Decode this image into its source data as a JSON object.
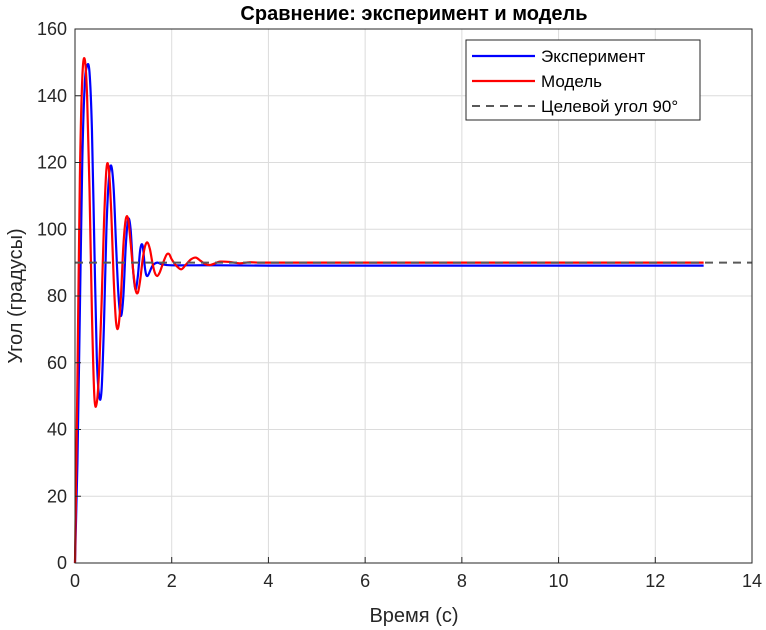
{
  "chart_data": {
    "type": "line",
    "title": "Сравнение: эксперимент и модель",
    "xlabel": "Время (с)",
    "ylabel": "Угол (градусы)",
    "xlim": [
      0,
      14
    ],
    "ylim": [
      0,
      160
    ],
    "x_ticks": [
      0,
      2,
      4,
      6,
      8,
      10,
      12,
      14
    ],
    "y_ticks": [
      0,
      20,
      40,
      60,
      80,
      100,
      120,
      140,
      160
    ],
    "grid": true,
    "legend_position": "top-right",
    "series": [
      {
        "name": "Эксперимент",
        "color": "#0000ff",
        "style": "solid",
        "x": [
          0,
          0.05,
          0.1,
          0.15,
          0.2,
          0.25,
          0.3,
          0.35,
          0.4,
          0.45,
          0.5,
          0.55,
          0.6,
          0.65,
          0.7,
          0.75,
          0.8,
          0.85,
          0.9,
          0.95,
          1.0,
          1.05,
          1.1,
          1.15,
          1.2,
          1.25,
          1.3,
          1.35,
          1.4,
          1.45,
          1.5,
          1.6,
          1.7,
          1.8,
          2.0,
          2.5,
          3.0,
          4.0,
          6.0,
          8.0,
          10.0,
          12.0,
          13.0
        ],
        "y": [
          0,
          30,
          75,
          120,
          143,
          149,
          147,
          130,
          95,
          62,
          50,
          52,
          72,
          100,
          115,
          119,
          112,
          95,
          80,
          74,
          80,
          95,
          103,
          100,
          88,
          82,
          86,
          94,
          95,
          88,
          86,
          89,
          90,
          89.5,
          89.2,
          89.2,
          89.2,
          89.1,
          89.1,
          89.1,
          89.1,
          89.1,
          89.1
        ]
      },
      {
        "name": "Модель",
        "color": "#ff0000",
        "style": "solid",
        "x": [
          0,
          0.05,
          0.1,
          0.15,
          0.2,
          0.25,
          0.3,
          0.35,
          0.4,
          0.45,
          0.5,
          0.55,
          0.6,
          0.65,
          0.7,
          0.75,
          0.8,
          0.85,
          0.9,
          0.95,
          1.0,
          1.05,
          1.1,
          1.15,
          1.2,
          1.25,
          1.3,
          1.35,
          1.4,
          1.45,
          1.5,
          1.55,
          1.6,
          1.65,
          1.7,
          1.75,
          1.8,
          1.85,
          1.9,
          1.95,
          2.0,
          2.1,
          2.2,
          2.3,
          2.4,
          2.5,
          2.6,
          2.7,
          2.8,
          2.9,
          3.0,
          3.2,
          3.4,
          3.6,
          3.8,
          4.0,
          5.0,
          6.0,
          8.0,
          10.0,
          12.0,
          13.0
        ],
        "y": [
          0,
          55,
          115,
          145,
          151,
          140,
          112,
          75,
          50,
          48,
          58,
          78,
          102,
          118,
          118,
          105,
          85,
          72,
          71,
          80,
          95,
          103,
          103,
          96,
          88,
          82,
          81,
          85,
          91,
          95,
          96,
          94,
          90,
          87,
          86,
          87,
          89,
          91,
          92.5,
          92.5,
          91,
          89,
          88,
          89.5,
          91,
          91.5,
          90.5,
          89.5,
          89.3,
          89.8,
          90.3,
          90.2,
          89.8,
          90.1,
          90.0,
          90.0,
          90.0,
          90.0,
          90.0,
          90.0,
          90.0,
          90.0
        ]
      },
      {
        "name": "Целевой угол 90°",
        "color": "#595959",
        "style": "dashed",
        "x": [
          0,
          14
        ],
        "y": [
          90,
          90
        ]
      }
    ]
  }
}
